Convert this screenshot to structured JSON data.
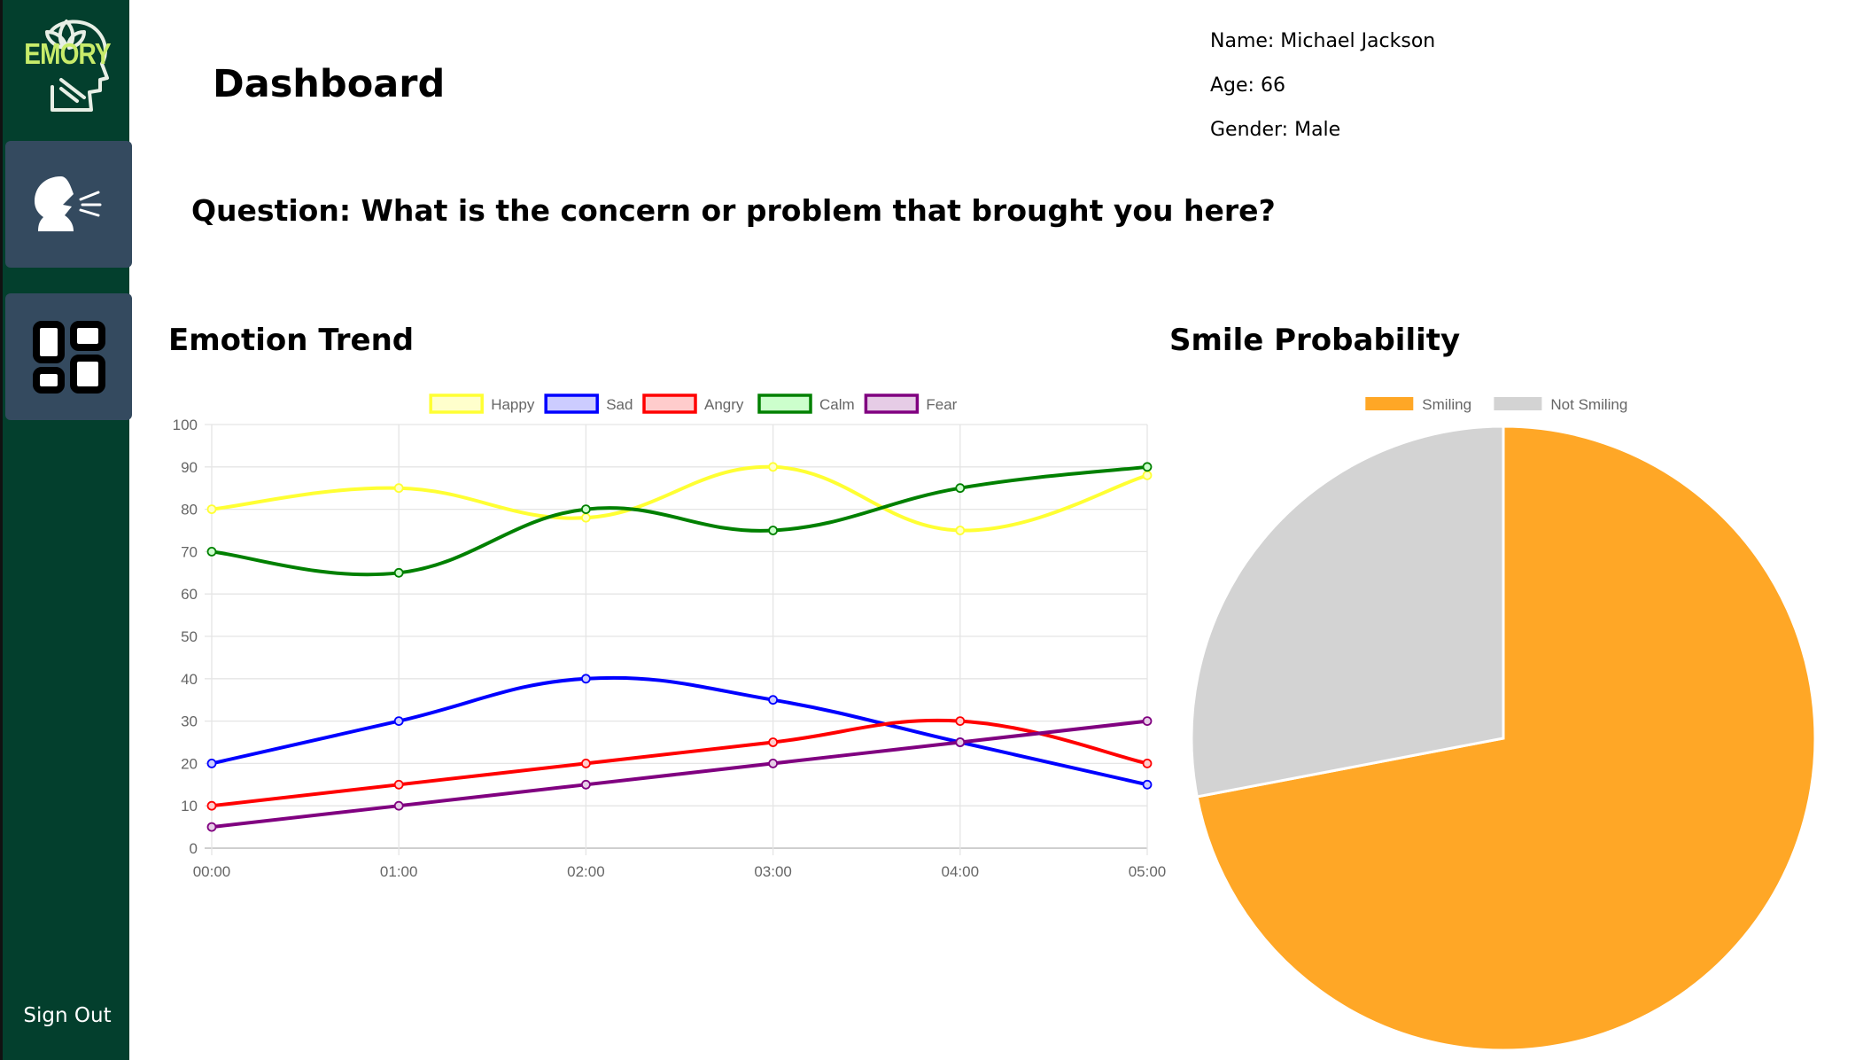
{
  "sidebar": {
    "logo_text": "EMORY",
    "items": [
      {
        "name": "speech",
        "icon": "speaking-head-icon"
      },
      {
        "name": "dashboard",
        "icon": "dashboard-grid-icon"
      }
    ],
    "sign_out_label": "Sign Out",
    "colors": {
      "background": "#033f2d",
      "tile": "#344a5f",
      "logo_accent": "#c8ec6a"
    }
  },
  "header": {
    "title": "Dashboard",
    "question": "Question: What is the concern or problem that brought you here?"
  },
  "patient": {
    "name": "Name: Michael Jackson",
    "age": "Age: 66",
    "gender": "Gender: Male"
  },
  "sections": {
    "emotion_trend_title": "Emotion Trend",
    "smile_probability_title": "Smile Probability"
  },
  "chart_data": [
    {
      "type": "line",
      "title": "Emotion Trend",
      "xlabel": "",
      "ylabel": "",
      "x": [
        "00:00",
        "01:00",
        "02:00",
        "03:00",
        "04:00",
        "05:00"
      ],
      "ylim": [
        0,
        100
      ],
      "yticks": [
        0,
        10,
        20,
        30,
        40,
        50,
        60,
        70,
        80,
        90,
        100
      ],
      "grid": true,
      "legend": "top-center",
      "series": [
        {
          "name": "Happy",
          "color": "#ffff33",
          "fill": "#ffffcc",
          "values": [
            80,
            85,
            78,
            90,
            75,
            88
          ]
        },
        {
          "name": "Sad",
          "color": "#0000ff",
          "fill": "#ccccff",
          "values": [
            20,
            30,
            40,
            35,
            25,
            15
          ]
        },
        {
          "name": "Angry",
          "color": "#ff0000",
          "fill": "#ffcccc",
          "values": [
            10,
            15,
            20,
            25,
            30,
            20
          ]
        },
        {
          "name": "Calm",
          "color": "#008000",
          "fill": "#ccffcc",
          "values": [
            70,
            65,
            80,
            75,
            85,
            90
          ]
        },
        {
          "name": "Fear",
          "color": "#800080",
          "fill": "#e6cce6",
          "values": [
            5,
            10,
            15,
            20,
            25,
            30
          ]
        }
      ]
    },
    {
      "type": "pie",
      "title": "Smile Probability",
      "legend": "top-center",
      "categories": [
        "Smiling",
        "Not Smiling"
      ],
      "values": [
        72,
        28
      ],
      "colors": [
        "#ffa726",
        "#d3d3d3"
      ]
    }
  ]
}
